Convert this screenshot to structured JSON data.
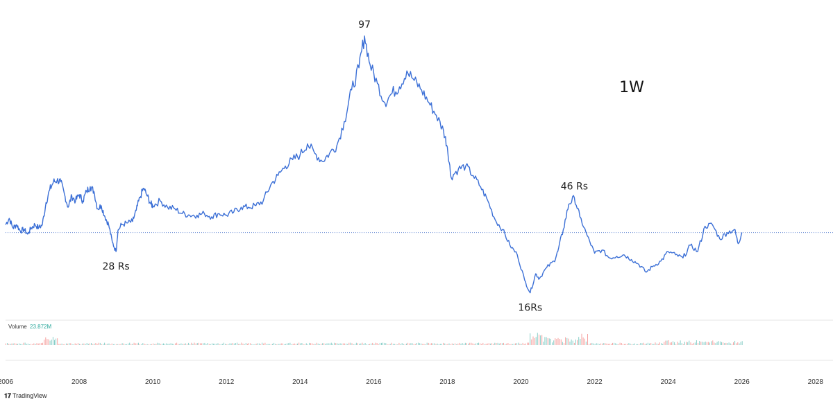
{
  "brand": {
    "logo_icon": "tradingview-logo-icon",
    "name": "TradingView"
  },
  "chart_data": {
    "type": "line",
    "timeframe": "1W",
    "x_ticks": [
      "2006",
      "2008",
      "2010",
      "2012",
      "2014",
      "2016",
      "2018",
      "2020",
      "2022",
      "2024",
      "2026",
      "2028"
    ],
    "xlim": [
      2006,
      2028.4
    ],
    "ylim": [
      10,
      104
    ],
    "grid": false,
    "line_color": "#3b6fd6",
    "last_price_line": true,
    "points": [
      [
        2006.0,
        37.5
      ],
      [
        2006.1,
        39.5
      ],
      [
        2006.2,
        36.5
      ],
      [
        2006.3,
        37.5
      ],
      [
        2006.4,
        35.5
      ],
      [
        2006.5,
        36.0
      ],
      [
        2006.6,
        34.5
      ],
      [
        2006.7,
        36.5
      ],
      [
        2006.8,
        37.5
      ],
      [
        2006.9,
        36.5
      ],
      [
        2007.0,
        37.5
      ],
      [
        2007.1,
        44.5
      ],
      [
        2007.2,
        48.5
      ],
      [
        2007.3,
        51.0
      ],
      [
        2007.4,
        51.5
      ],
      [
        2007.5,
        51.0
      ],
      [
        2007.6,
        47.0
      ],
      [
        2007.7,
        43.0
      ],
      [
        2007.8,
        46.5
      ],
      [
        2007.9,
        45.0
      ],
      [
        2008.0,
        47.0
      ],
      [
        2008.1,
        45.0
      ],
      [
        2008.2,
        48.0
      ],
      [
        2008.3,
        49.5
      ],
      [
        2008.4,
        48.0
      ],
      [
        2008.5,
        42.5
      ],
      [
        2008.6,
        43.5
      ],
      [
        2008.7,
        40.0
      ],
      [
        2008.8,
        37.5
      ],
      [
        2008.9,
        32.0
      ],
      [
        2009.0,
        29.0
      ],
      [
        2009.05,
        35.5
      ],
      [
        2009.15,
        37.5
      ],
      [
        2009.3,
        38.0
      ],
      [
        2009.45,
        38.5
      ],
      [
        2009.55,
        42.0
      ],
      [
        2009.65,
        46.0
      ],
      [
        2009.75,
        49.0
      ],
      [
        2009.85,
        46.5
      ],
      [
        2009.95,
        44.0
      ],
      [
        2010.0,
        43.5
      ],
      [
        2010.2,
        45.0
      ],
      [
        2010.4,
        43.0
      ],
      [
        2010.6,
        42.5
      ],
      [
        2010.8,
        41.0
      ],
      [
        2011.0,
        40.5
      ],
      [
        2011.2,
        40.5
      ],
      [
        2011.4,
        41.0
      ],
      [
        2011.6,
        40.0
      ],
      [
        2011.8,
        41.0
      ],
      [
        2012.0,
        40.5
      ],
      [
        2012.2,
        41.5
      ],
      [
        2012.4,
        43.0
      ],
      [
        2012.6,
        43.0
      ],
      [
        2012.8,
        43.5
      ],
      [
        2013.0,
        45.0
      ],
      [
        2013.2,
        50.0
      ],
      [
        2013.4,
        53.0
      ],
      [
        2013.6,
        56.0
      ],
      [
        2013.8,
        58.0
      ],
      [
        2014.0,
        59.5
      ],
      [
        2014.2,
        63.0
      ],
      [
        2014.4,
        60.0
      ],
      [
        2014.6,
        57.5
      ],
      [
        2014.8,
        60.0
      ],
      [
        2015.0,
        62.5
      ],
      [
        2015.2,
        70.0
      ],
      [
        2015.4,
        80.0
      ],
      [
        2015.6,
        87.0
      ],
      [
        2015.75,
        97.0
      ],
      [
        2015.9,
        88.0
      ],
      [
        2016.1,
        82.0
      ],
      [
        2016.3,
        76.0
      ],
      [
        2016.5,
        79.0
      ],
      [
        2016.7,
        81.0
      ],
      [
        2016.9,
        86.0
      ],
      [
        2017.1,
        83.0
      ],
      [
        2017.3,
        80.0
      ],
      [
        2017.5,
        76.0
      ],
      [
        2017.7,
        72.0
      ],
      [
        2017.9,
        67.0
      ],
      [
        2018.0,
        62.0
      ],
      [
        2018.1,
        52.5
      ],
      [
        2018.3,
        55.0
      ],
      [
        2018.5,
        56.0
      ],
      [
        2018.7,
        53.0
      ],
      [
        2018.9,
        49.5
      ],
      [
        2019.1,
        45.0
      ],
      [
        2019.3,
        39.0
      ],
      [
        2019.5,
        36.0
      ],
      [
        2019.7,
        31.0
      ],
      [
        2019.9,
        28.0
      ],
      [
        2020.1,
        20.0
      ],
      [
        2020.25,
        16.0
      ],
      [
        2020.4,
        22.0
      ],
      [
        2020.5,
        20.5
      ],
      [
        2020.7,
        24.0
      ],
      [
        2020.9,
        26.0
      ],
      [
        2021.0,
        29.0
      ],
      [
        2021.15,
        36.0
      ],
      [
        2021.3,
        44.0
      ],
      [
        2021.45,
        46.0
      ],
      [
        2021.6,
        40.0
      ],
      [
        2021.8,
        34.0
      ],
      [
        2022.0,
        28.5
      ],
      [
        2022.2,
        29.5
      ],
      [
        2022.4,
        27.0
      ],
      [
        2022.6,
        27.5
      ],
      [
        2022.8,
        28.0
      ],
      [
        2023.0,
        26.5
      ],
      [
        2023.2,
        25.0
      ],
      [
        2023.4,
        22.5
      ],
      [
        2023.6,
        24.5
      ],
      [
        2023.8,
        26.0
      ],
      [
        2024.0,
        29.0
      ],
      [
        2024.2,
        28.0
      ],
      [
        2024.4,
        27.0
      ],
      [
        2024.6,
        31.0
      ],
      [
        2024.8,
        29.0
      ],
      [
        2025.0,
        37.0
      ],
      [
        2025.2,
        37.5
      ],
      [
        2025.4,
        33.0
      ],
      [
        2025.6,
        35.0
      ],
      [
        2025.8,
        36.0
      ],
      [
        2025.9,
        31.5
      ],
      [
        2026.0,
        35.0
      ]
    ],
    "last_price": 35,
    "annotations": [
      {
        "text": "28 Rs",
        "x": 2009.0,
        "y": 29
      },
      {
        "text": "97",
        "x": 2015.75,
        "y": 97
      },
      {
        "text": "16Rs",
        "x": 2020.25,
        "y": 16
      },
      {
        "text": "46 Rs",
        "x": 2021.45,
        "y": 46
      }
    ],
    "volume": {
      "label": "Volume",
      "value": "23.872M",
      "up_color": "#26a69a",
      "down_color": "#ef5350"
    }
  }
}
